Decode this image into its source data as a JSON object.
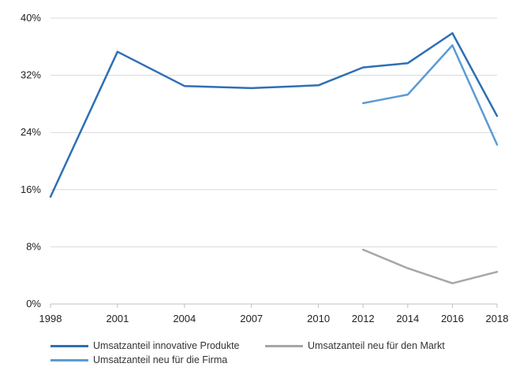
{
  "chart_data": {
    "type": "line",
    "title": "",
    "xlabel": "",
    "ylabel": "",
    "x": [
      "1998",
      "2001",
      "2004",
      "2007",
      "2010",
      "2012",
      "2014",
      "2016",
      "2018"
    ],
    "ylim": [
      0,
      40
    ],
    "yticks": [
      "0%",
      "8%",
      "16%",
      "24%",
      "32%",
      "40%"
    ],
    "grid": "horizontal",
    "legend_position": "bottom",
    "series": [
      {
        "name": "Umsatzanteil innovative Produkte",
        "color": "#2e6fb5",
        "values": [
          15.0,
          35.3,
          30.5,
          30.2,
          30.6,
          33.1,
          33.7,
          37.9,
          26.3
        ]
      },
      {
        "name": "Umsatzanteil neu für den Markt",
        "color": "#a6a6a6",
        "values": [
          null,
          null,
          null,
          null,
          null,
          7.6,
          5.0,
          2.9,
          4.5
        ]
      },
      {
        "name": "Umsatzanteil neu für die Firma",
        "color": "#5b9bd5",
        "values": [
          null,
          null,
          null,
          null,
          null,
          28.1,
          29.3,
          36.2,
          22.3
        ]
      }
    ]
  }
}
